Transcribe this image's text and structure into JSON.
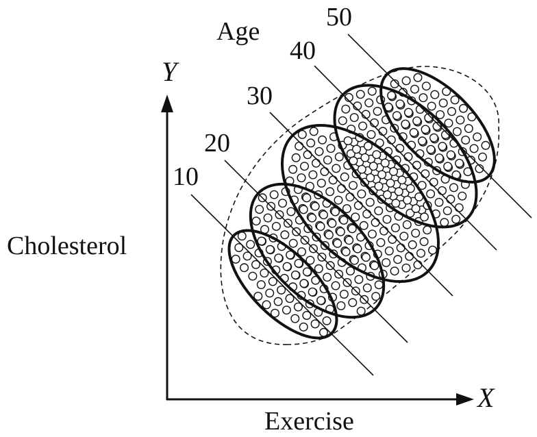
{
  "axes": {
    "y_letter": "Y",
    "y_label": "Cholesterol",
    "x_letter": "X",
    "x_label": "Exercise"
  },
  "legend_title": "Age",
  "groups": [
    {
      "label": "10"
    },
    {
      "label": "20"
    },
    {
      "label": "30"
    },
    {
      "label": "40"
    },
    {
      "label": "50"
    }
  ]
}
